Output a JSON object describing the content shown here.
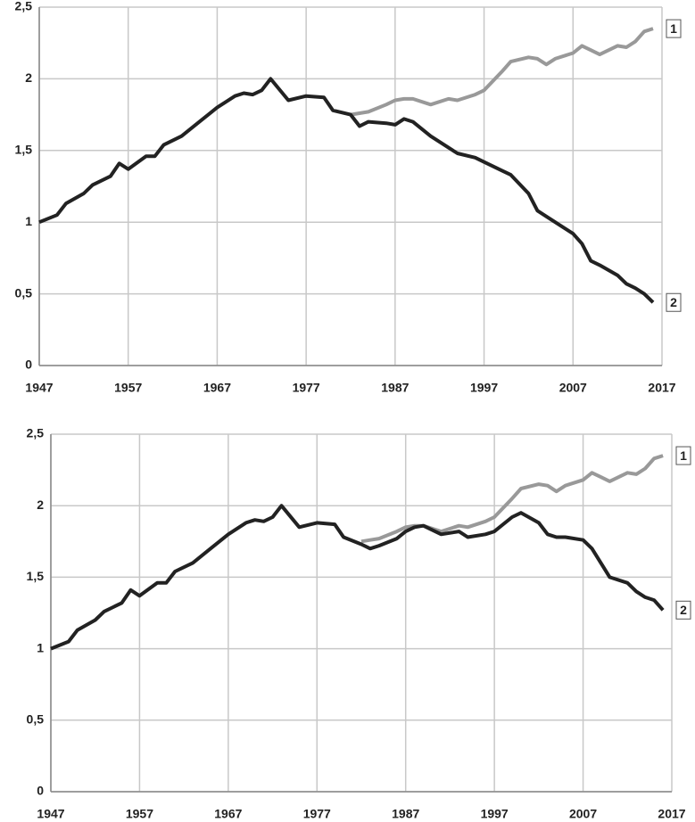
{
  "chart_data": [
    {
      "type": "line",
      "x": [
        1947,
        1949,
        1950,
        1952,
        1953,
        1955,
        1956,
        1957,
        1959,
        1960,
        1961,
        1963,
        1965,
        1967,
        1969,
        1970,
        1971,
        1972,
        1973,
        1975,
        1977,
        1979,
        1980,
        1982,
        1983,
        1984,
        1986,
        1987,
        1988,
        1989,
        1991,
        1993,
        1994,
        1996,
        1997,
        1999,
        2000,
        2002,
        2003,
        2004,
        2005,
        2007,
        2008,
        2009,
        2010,
        2012,
        2013,
        2014,
        2015,
        2016
      ],
      "series": [
        {
          "name": "1",
          "color": "#999999",
          "values": [
            null,
            null,
            null,
            null,
            null,
            null,
            null,
            null,
            null,
            null,
            null,
            null,
            null,
            null,
            null,
            null,
            null,
            null,
            null,
            null,
            null,
            null,
            null,
            1.75,
            1.76,
            1.77,
            1.82,
            1.85,
            1.86,
            1.86,
            1.82,
            1.86,
            1.85,
            1.89,
            1.92,
            2.05,
            2.12,
            2.15,
            2.14,
            2.1,
            2.14,
            2.18,
            2.23,
            2.2,
            2.17,
            2.23,
            2.22,
            2.26,
            2.33,
            2.35
          ]
        },
        {
          "name": "2",
          "color": "#222222",
          "values": [
            1.0,
            1.05,
            1.13,
            1.2,
            1.26,
            1.32,
            1.41,
            1.37,
            1.46,
            1.46,
            1.54,
            1.6,
            1.7,
            1.8,
            1.88,
            1.9,
            1.89,
            1.92,
            2.0,
            1.85,
            1.88,
            1.87,
            1.78,
            1.75,
            1.67,
            1.7,
            1.69,
            1.68,
            1.72,
            1.7,
            1.6,
            1.52,
            1.48,
            1.45,
            1.42,
            1.36,
            1.33,
            1.2,
            1.08,
            1.04,
            1.0,
            0.92,
            0.85,
            0.73,
            0.7,
            0.63,
            0.57,
            0.54,
            0.5,
            0.44
          ]
        }
      ],
      "xlim": [
        1947,
        2017
      ],
      "xticks": [
        1947,
        1957,
        1967,
        1977,
        1987,
        1997,
        2007,
        2017
      ],
      "ylim": [
        0,
        2.5
      ],
      "yticks": [
        0,
        {
          "value": 0.5,
          "label": "0,5"
        },
        1,
        {
          "value": 1.5,
          "label": "1,5"
        },
        2,
        {
          "value": 2.5,
          "label": "2,5"
        }
      ],
      "grid": true
    },
    {
      "type": "line",
      "x": [
        1947,
        1949,
        1950,
        1952,
        1953,
        1955,
        1956,
        1957,
        1959,
        1960,
        1961,
        1963,
        1965,
        1967,
        1969,
        1970,
        1971,
        1972,
        1973,
        1975,
        1977,
        1979,
        1980,
        1982,
        1983,
        1984,
        1986,
        1987,
        1988,
        1989,
        1991,
        1993,
        1994,
        1996,
        1997,
        1999,
        2000,
        2002,
        2003,
        2004,
        2005,
        2007,
        2008,
        2009,
        2010,
        2012,
        2013,
        2014,
        2015,
        2016
      ],
      "series": [
        {
          "name": "1",
          "color": "#999999",
          "values": [
            null,
            null,
            null,
            null,
            null,
            null,
            null,
            null,
            null,
            null,
            null,
            null,
            null,
            null,
            null,
            null,
            null,
            null,
            null,
            null,
            null,
            null,
            null,
            1.75,
            1.76,
            1.77,
            1.82,
            1.85,
            1.86,
            1.86,
            1.82,
            1.86,
            1.85,
            1.89,
            1.92,
            2.05,
            2.12,
            2.15,
            2.14,
            2.1,
            2.14,
            2.18,
            2.23,
            2.2,
            2.17,
            2.23,
            2.22,
            2.26,
            2.33,
            2.35
          ]
        },
        {
          "name": "2",
          "color": "#222222",
          "values": [
            1.0,
            1.05,
            1.13,
            1.2,
            1.26,
            1.32,
            1.41,
            1.37,
            1.46,
            1.46,
            1.54,
            1.6,
            1.7,
            1.8,
            1.88,
            1.9,
            1.89,
            1.92,
            2.0,
            1.85,
            1.88,
            1.87,
            1.78,
            1.73,
            1.7,
            1.72,
            1.77,
            1.82,
            1.85,
            1.86,
            1.8,
            1.82,
            1.78,
            1.8,
            1.82,
            1.92,
            1.95,
            1.88,
            1.8,
            1.78,
            1.78,
            1.76,
            1.7,
            1.6,
            1.5,
            1.46,
            1.4,
            1.36,
            1.34,
            1.27
          ]
        }
      ],
      "xlim": [
        1947,
        2017
      ],
      "xticks": [
        1947,
        1957,
        1967,
        1977,
        1987,
        1997,
        2007,
        2017
      ],
      "ylim": [
        0,
        2.5
      ],
      "yticks": [
        0,
        {
          "value": 0.5,
          "label": "0,5"
        },
        1,
        {
          "value": 1.5,
          "label": "1,5"
        },
        2,
        {
          "value": 2.5,
          "label": "2,5"
        }
      ],
      "grid": true
    }
  ]
}
